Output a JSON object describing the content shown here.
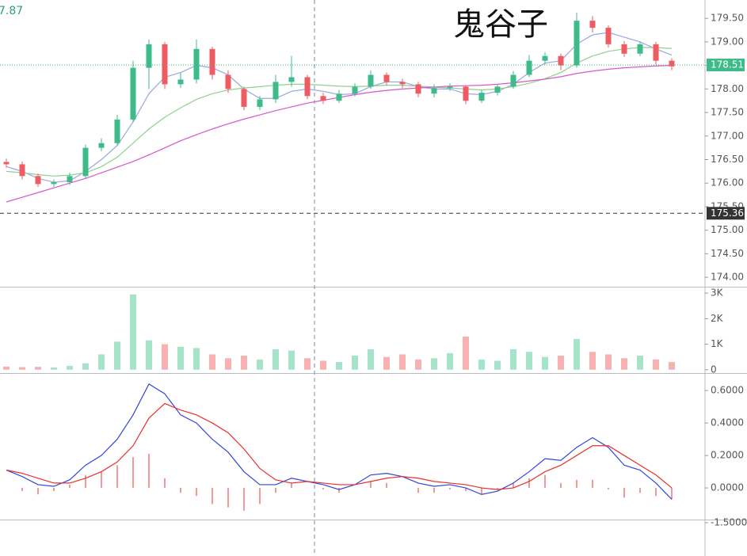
{
  "title": "鬼谷子",
  "corner_label": "7.87",
  "chart_data": [
    {
      "type": "candlestick",
      "up_color": "#3dbb8a",
      "down_color": "#ef5b62",
      "open": [
        176.45,
        176.4,
        176.15,
        175.98,
        176.02,
        176.15,
        176.75,
        176.85,
        177.35,
        178.45,
        178.95,
        178.1,
        178.2,
        178.85,
        178.3,
        178.0,
        177.62,
        177.78,
        178.15,
        178.25,
        177.85,
        177.75,
        177.9,
        178.05,
        178.3,
        178.15,
        178.1,
        177.9,
        178.02,
        178.05,
        177.75,
        177.92,
        178.05,
        178.3,
        178.6,
        178.7,
        178.5,
        179.45,
        179.3,
        178.95,
        178.75,
        178.95,
        178.6
      ],
      "high": [
        176.52,
        176.46,
        176.2,
        176.08,
        176.22,
        176.82,
        176.95,
        177.45,
        178.6,
        179.05,
        179.0,
        178.35,
        179.05,
        178.9,
        178.4,
        178.05,
        177.85,
        178.3,
        178.7,
        178.3,
        177.92,
        177.98,
        178.12,
        178.4,
        178.35,
        178.22,
        178.15,
        178.1,
        178.12,
        178.08,
        177.98,
        178.1,
        178.38,
        178.72,
        178.78,
        178.75,
        179.62,
        179.55,
        179.35,
        179.02,
        179.0,
        179.0,
        178.65
      ],
      "low": [
        176.33,
        176.08,
        175.92,
        175.92,
        175.96,
        176.1,
        176.68,
        176.8,
        177.3,
        178.0,
        178.0,
        178.02,
        178.12,
        178.2,
        177.92,
        177.55,
        177.55,
        177.7,
        178.05,
        177.78,
        177.68,
        177.7,
        177.84,
        178.0,
        178.08,
        178.02,
        177.82,
        177.82,
        177.96,
        177.68,
        177.7,
        177.86,
        178.0,
        178.25,
        178.52,
        178.4,
        178.45,
        179.2,
        178.88,
        178.68,
        178.7,
        178.52,
        178.4
      ],
      "close": [
        176.4,
        176.15,
        175.98,
        176.02,
        176.15,
        176.75,
        176.85,
        177.35,
        178.45,
        178.95,
        178.1,
        178.2,
        178.85,
        178.3,
        178.0,
        177.62,
        177.78,
        178.15,
        178.25,
        177.85,
        177.75,
        177.9,
        178.05,
        178.3,
        178.15,
        178.1,
        177.9,
        178.02,
        178.05,
        177.75,
        177.92,
        178.05,
        178.3,
        178.6,
        178.7,
        178.5,
        179.45,
        179.3,
        178.95,
        178.75,
        178.95,
        178.6,
        178.48
      ],
      "lines": [
        {
          "color": "#9aa6e0",
          "values": [
            176.35,
            176.25,
            176.1,
            176.02,
            176.05,
            176.25,
            176.5,
            176.8,
            177.3,
            177.9,
            178.25,
            178.35,
            178.5,
            178.45,
            178.3,
            178.0,
            177.8,
            177.8,
            177.95,
            178.0,
            177.95,
            177.88,
            177.9,
            178.05,
            178.15,
            178.15,
            178.05,
            178.0,
            178.0,
            177.9,
            177.88,
            177.95,
            178.1,
            178.35,
            178.55,
            178.6,
            178.95,
            179.15,
            179.2,
            179.1,
            179.0,
            178.85,
            178.72
          ]
        },
        {
          "color": "#8fd18f",
          "values": [
            176.25,
            176.22,
            176.18,
            176.15,
            176.17,
            176.22,
            176.35,
            176.55,
            176.85,
            177.15,
            177.4,
            177.6,
            177.78,
            177.9,
            177.98,
            178.02,
            178.05,
            178.08,
            178.1,
            178.1,
            178.08,
            178.06,
            178.05,
            178.06,
            178.08,
            178.08,
            178.06,
            178.04,
            178.02,
            178.0,
            177.98,
            178.0,
            178.05,
            178.12,
            178.22,
            178.35,
            178.55,
            178.7,
            178.8,
            178.85,
            178.88,
            178.88,
            178.86
          ]
        },
        {
          "color": "#d957c8",
          "values": [
            175.6,
            175.7,
            175.8,
            175.9,
            176.0,
            176.1,
            176.22,
            176.34,
            176.46,
            176.6,
            176.75,
            176.9,
            177.03,
            177.15,
            177.26,
            177.36,
            177.45,
            177.54,
            177.62,
            177.7,
            177.76,
            177.82,
            177.88,
            177.93,
            177.97,
            178.0,
            178.02,
            178.04,
            178.06,
            178.07,
            178.08,
            178.1,
            178.13,
            178.17,
            178.21,
            178.26,
            178.33,
            178.38,
            178.42,
            178.45,
            178.47,
            178.49,
            178.5
          ]
        }
      ],
      "ylim": [
        173.8,
        179.89
      ],
      "yticks": [
        {
          "value": 174,
          "label": "174.00"
        },
        {
          "value": 174.5,
          "label": "174.50"
        },
        {
          "value": 175,
          "label": "175.00"
        },
        {
          "value": 175.5,
          "label": "175.50"
        },
        {
          "value": 176,
          "label": "176.00"
        },
        {
          "value": 176.5,
          "label": "176.50"
        },
        {
          "value": 177,
          "label": "177.00"
        },
        {
          "value": 177.5,
          "label": "177.50"
        },
        {
          "value": 178,
          "label": "178.00"
        },
        {
          "value": 178.5,
          "label": "178.50"
        },
        {
          "value": 179,
          "label": "179.00"
        },
        {
          "value": 179.5,
          "label": "179.50"
        }
      ],
      "price_lines": [
        {
          "value": 178.51,
          "label": "178.51",
          "color": "#3dbb8a"
        },
        {
          "value": 175.36,
          "label": "175.36",
          "color": "#333333"
        }
      ]
    },
    {
      "type": "bar",
      "values": [
        120,
        100,
        110,
        90,
        150,
        250,
        600,
        1100,
        2950,
        1150,
        1000,
        900,
        850,
        600,
        450,
        550,
        400,
        800,
        750,
        450,
        350,
        300,
        550,
        800,
        500,
        600,
        400,
        450,
        650,
        1300,
        400,
        350,
        800,
        700,
        500,
        550,
        1200,
        700,
        600,
        450,
        550,
        400,
        300
      ],
      "up_color": "#a6e3c8",
      "down_color": "#f7b1b1",
      "ylim": [
        -100,
        3220
      ],
      "yticks": [
        0,
        {
          "value": 1000,
          "label": "1K"
        },
        {
          "value": 2000,
          "label": "2K"
        },
        {
          "value": 3000,
          "label": "3K"
        }
      ]
    },
    {
      "type": "macd",
      "dif": [
        0.11,
        0.07,
        0.02,
        0.01,
        0.05,
        0.14,
        0.2,
        0.3,
        0.45,
        0.64,
        0.58,
        0.45,
        0.4,
        0.3,
        0.22,
        0.1,
        0.02,
        0.02,
        0.06,
        0.04,
        0.02,
        -0.01,
        0.02,
        0.08,
        0.09,
        0.07,
        0.03,
        0.01,
        0.02,
        0.0,
        -0.04,
        -0.02,
        0.03,
        0.1,
        0.18,
        0.17,
        0.25,
        0.31,
        0.25,
        0.14,
        0.11,
        0.03,
        -0.07
      ],
      "dea": [
        0.11,
        0.09,
        0.06,
        0.03,
        0.03,
        0.06,
        0.1,
        0.16,
        0.26,
        0.43,
        0.52,
        0.48,
        0.45,
        0.4,
        0.34,
        0.24,
        0.12,
        0.05,
        0.03,
        0.04,
        0.03,
        0.02,
        0.02,
        0.04,
        0.06,
        0.07,
        0.06,
        0.04,
        0.03,
        0.02,
        0.0,
        -0.01,
        0.0,
        0.04,
        0.1,
        0.14,
        0.2,
        0.26,
        0.26,
        0.2,
        0.14,
        0.08,
        0.0
      ],
      "hist": [
        0,
        -0.02,
        -0.04,
        -0.02,
        0.02,
        0.08,
        0.1,
        0.14,
        0.19,
        0.21,
        0.06,
        -0.03,
        -0.05,
        -0.1,
        -0.12,
        -0.14,
        -0.1,
        -0.03,
        0.03,
        0,
        -0.01,
        -0.03,
        0,
        0.04,
        0.03,
        0,
        -0.03,
        -0.03,
        -0.01,
        -0.02,
        -0.04,
        -0.01,
        0.03,
        0.06,
        0.08,
        0.03,
        0.05,
        0.05,
        -0.01,
        -0.06,
        -0.03,
        -0.05,
        -0.07
      ],
      "dif_color": "#3344dd",
      "dea_color": "#e8302c",
      "hist_color": "#e8302c",
      "ylim": [
        -0.19,
        0.698
      ],
      "yticks": [
        {
          "value": 0,
          "label": "0.0000"
        },
        {
          "value": 0.2,
          "label": "0.2000"
        },
        {
          "value": 0.4,
          "label": "0.4000"
        },
        {
          "value": 0.6,
          "label": "0.6000"
        }
      ]
    },
    {
      "type": "indicator",
      "ylim": [
        -2.2,
        -1.45
      ],
      "yticks": [
        {
          "value": -1.5,
          "label": "-1.5000"
        }
      ]
    }
  ]
}
